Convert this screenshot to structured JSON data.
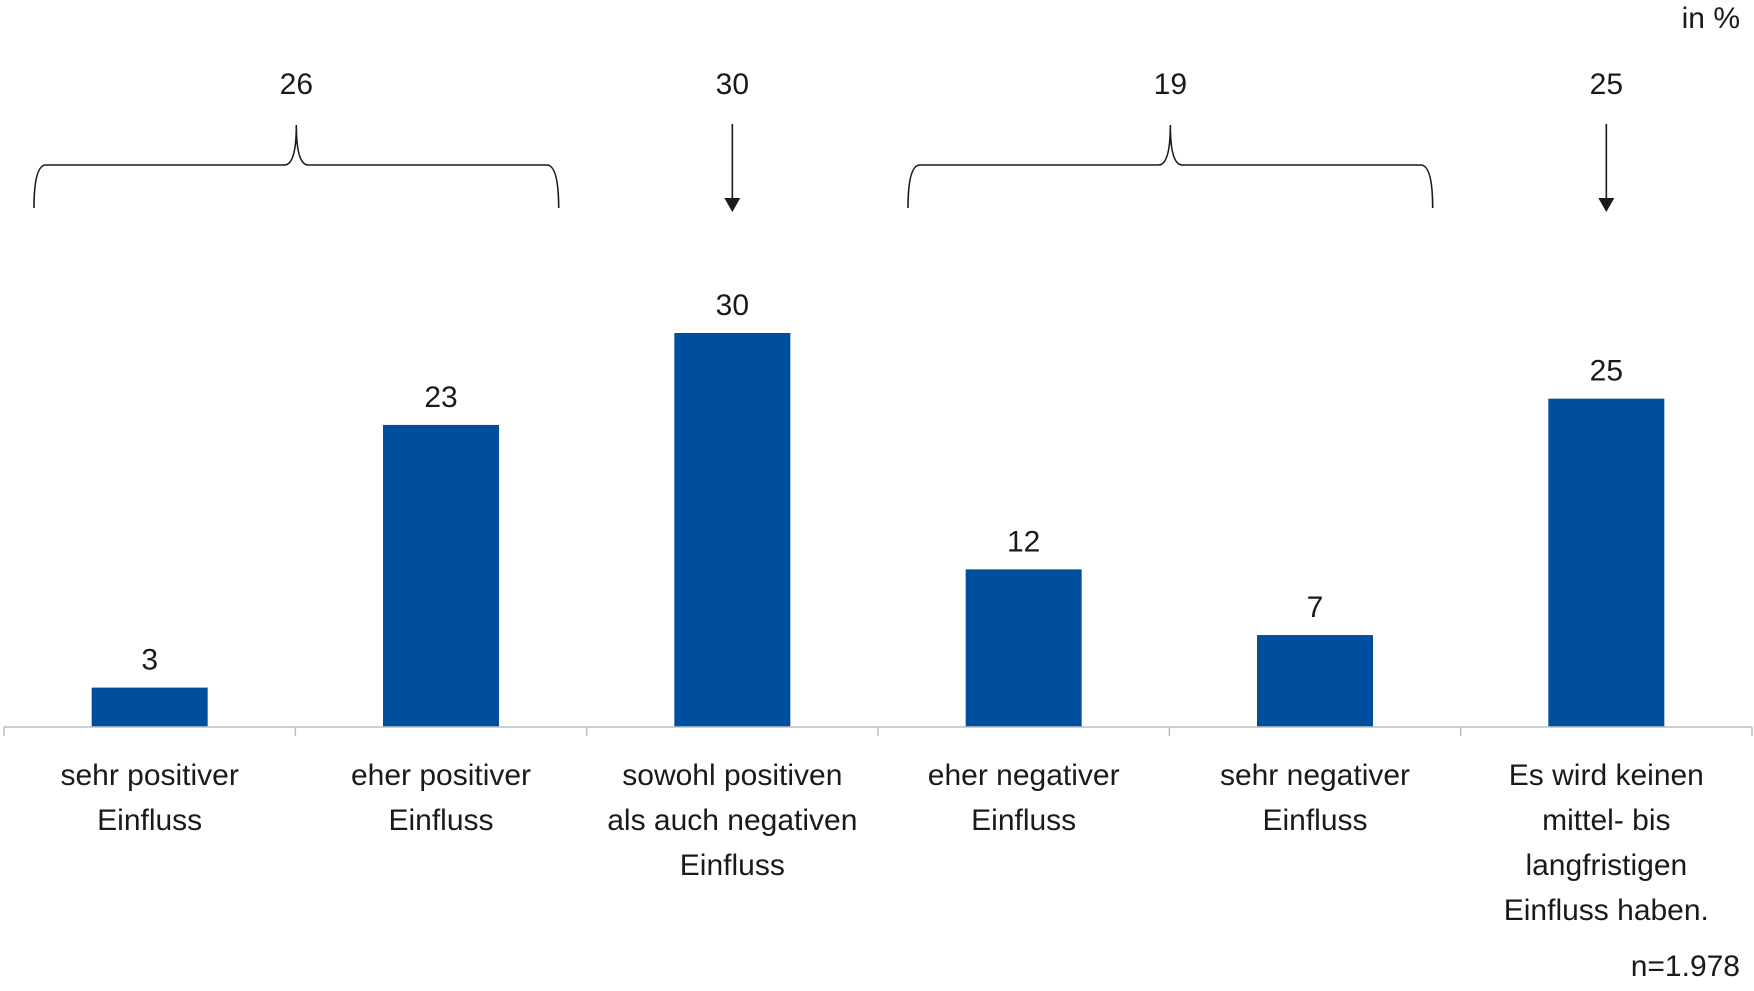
{
  "unit_label": "in %",
  "footnote": "n=1.978",
  "chart_data": {
    "type": "bar",
    "title": "",
    "xlabel": "",
    "ylabel": "",
    "ylim": [
      0,
      30
    ],
    "grid": false,
    "legend": "none",
    "bar_color": "#004f9f",
    "categories": [
      [
        "sehr positiver",
        "Einfluss"
      ],
      [
        "eher positiver",
        "Einfluss"
      ],
      [
        "sowohl positiven",
        "als auch negativen",
        "Einfluss"
      ],
      [
        "eher negativer",
        "Einfluss"
      ],
      [
        "sehr negativer",
        "Einfluss"
      ],
      [
        "Es wird keinen",
        "mittel- bis",
        "langfristigen",
        "Einfluss haben."
      ]
    ],
    "values": [
      3,
      23,
      30,
      12,
      7,
      25
    ],
    "data_labels": [
      "3",
      "23",
      "30",
      "12",
      "7",
      "25"
    ],
    "summary_groups": [
      {
        "kind": "brace",
        "from": 0,
        "to": 1,
        "label": "26"
      },
      {
        "kind": "arrow",
        "from": 2,
        "to": 2,
        "label": "30"
      },
      {
        "kind": "brace",
        "from": 3,
        "to": 4,
        "label": "19"
      },
      {
        "kind": "arrow",
        "from": 5,
        "to": 5,
        "label": "25"
      }
    ]
  }
}
